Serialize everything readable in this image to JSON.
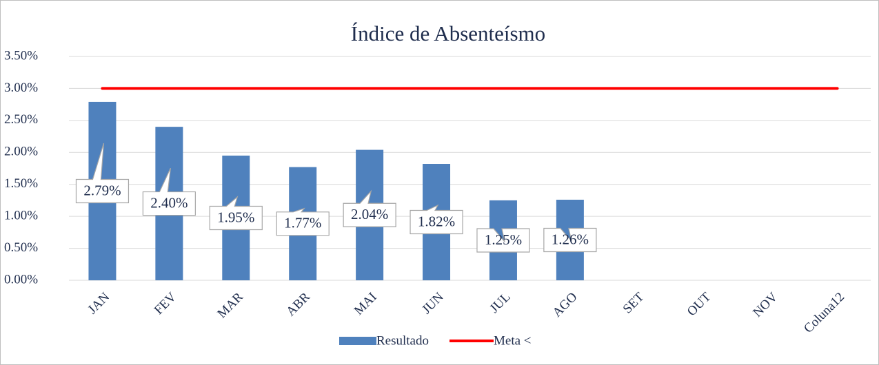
{
  "chart_data": {
    "type": "bar",
    "title": "Índice de Absenteísmo",
    "categories": [
      "JAN",
      "FEV",
      "MAR",
      "ABR",
      "MAI",
      "JUN",
      "JUL",
      "AGO",
      "SET",
      "OUT",
      "NOV",
      "Coluna12"
    ],
    "series": [
      {
        "name": "Resultado",
        "type": "bar",
        "color": "#4f81bd",
        "values": [
          2.79,
          2.4,
          1.95,
          1.77,
          2.04,
          1.82,
          1.25,
          1.26,
          null,
          null,
          null,
          null
        ],
        "value_labels": [
          "2.79%",
          "2.40%",
          "1.95%",
          "1.77%",
          "2.04%",
          "1.82%",
          "1.25%",
          "1.26%",
          null,
          null,
          null,
          null
        ]
      },
      {
        "name": "Meta <",
        "type": "line",
        "color": "#ff0000",
        "values": [
          3,
          3,
          3,
          3,
          3,
          3,
          3,
          3,
          3,
          3,
          3,
          3
        ]
      }
    ],
    "ylim": [
      0,
      3.5
    ],
    "yticks": [
      {
        "value": 0,
        "label": "0.00%"
      },
      {
        "value": 0.5,
        "label": "0.50%"
      },
      {
        "value": 1,
        "label": "1.00%"
      },
      {
        "value": 1.5,
        "label": "1.50%"
      },
      {
        "value": 2,
        "label": "2.00%"
      },
      {
        "value": 2.5,
        "label": "2.50%"
      },
      {
        "value": 3,
        "label": "3.00%"
      },
      {
        "value": 3.5,
        "label": "3.50%"
      }
    ],
    "grid": true,
    "legend": "bottom"
  }
}
